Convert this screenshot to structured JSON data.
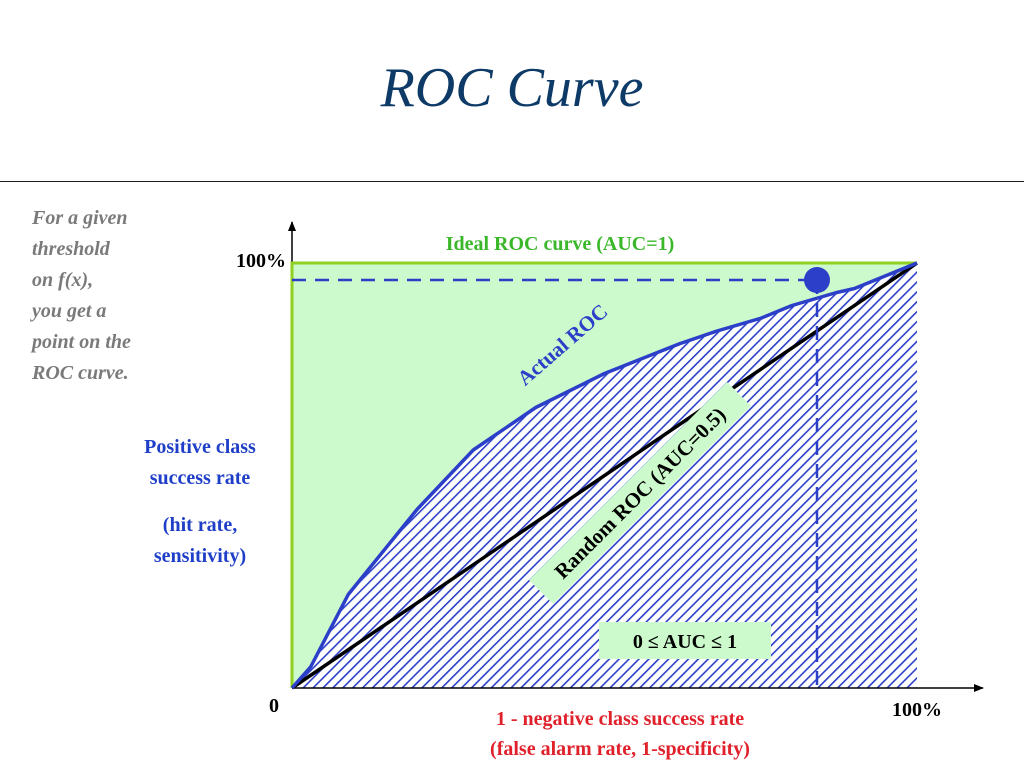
{
  "slide": {
    "title": "ROC Curve"
  },
  "side_note": {
    "lines": [
      "For a given",
      "threshold",
      "on f(x),",
      "you get a",
      "point on the",
      "ROC curve."
    ]
  },
  "y_axis_caption": {
    "lines": [
      "Positive class",
      "success rate"
    ],
    "sub_lines": [
      "(hit rate,",
      "sensitivity)"
    ]
  },
  "x_axis_caption": {
    "lines": [
      "1 - negative class success rate",
      "(false alarm rate, 1-specificity)"
    ]
  },
  "colors": {
    "title": "#0d3a66",
    "ideal": "#8fd020",
    "actual": "#2b3fc8",
    "random": "#000000",
    "region_fill": "#ccfacc",
    "x_caption": "#e0202a",
    "note": "#7a7a7a"
  },
  "chart_data": {
    "type": "line",
    "axis_ticks": {
      "origin": "0",
      "x_max": "100%",
      "y_max": "100%"
    },
    "xlim": [
      0,
      100
    ],
    "ylim": [
      0,
      100
    ],
    "series": [
      {
        "name": "Ideal ROC curve (AUC=1)",
        "x": [
          0,
          0,
          100
        ],
        "y": [
          0,
          100,
          100
        ]
      },
      {
        "name": "Actual ROC",
        "x": [
          0,
          3,
          9,
          20,
          29,
          39,
          50,
          62,
          68,
          75,
          80,
          87,
          90,
          100
        ],
        "y": [
          0,
          5,
          22,
          42,
          56,
          66,
          74,
          81,
          84,
          87,
          90,
          93,
          94,
          100
        ]
      },
      {
        "name": "Random ROC (AUC=0.5)",
        "x": [
          0,
          100
        ],
        "y": [
          0,
          100
        ]
      }
    ],
    "threshold_point": {
      "x": 84,
      "y": 96
    },
    "auc_range_label": "0 ≤ AUC ≤ 1"
  }
}
